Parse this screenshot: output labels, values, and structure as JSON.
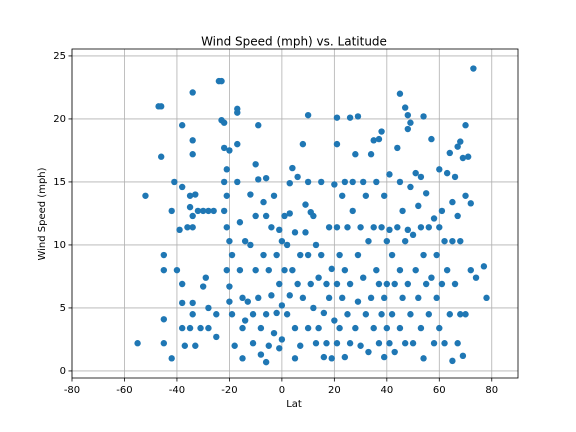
{
  "chart_data": {
    "type": "scatter",
    "title": "Wind Speed (mph) vs. Latitude",
    "x_label": "Lat",
    "y_label": "Wind Speed (mph)",
    "color": "#1f77b4",
    "grid": true,
    "xlim": [
      -80,
      90
    ],
    "xticks": [
      -80,
      -60,
      -40,
      -20,
      0,
      20,
      40,
      60,
      80
    ],
    "ylim": [
      -0.56,
      25.55
    ],
    "yticks": [
      0,
      5,
      10,
      15,
      20,
      25
    ],
    "x": [
      -55,
      -52,
      -47,
      -46,
      -46,
      -45,
      -45,
      -45,
      -45,
      -42,
      -42,
      -41,
      -40,
      -39,
      -38,
      -38,
      -38,
      -38,
      -38,
      -37,
      -36,
      -35,
      -35,
      -35,
      -34,
      -34,
      -34,
      -34,
      -34,
      -34,
      -34,
      -33,
      -33,
      -32,
      -31,
      -30,
      -30,
      -29,
      -28,
      -28,
      -28,
      -26,
      -25,
      -25,
      -24,
      -23,
      -23,
      -22,
      -22,
      -22,
      -22,
      -21,
      -21,
      -21,
      -21,
      -20,
      -20,
      -20,
      -20,
      -19,
      -19,
      -18,
      -17,
      -17,
      -17,
      -17,
      -16,
      -16,
      -15,
      -15,
      -15,
      -14,
      -14,
      -13,
      -12,
      -12,
      -11,
      -11,
      -10,
      -10,
      -10,
      -9,
      -9,
      -9,
      -8,
      -8,
      -7,
      -7,
      -6,
      -6,
      -6,
      -6,
      -5,
      -5,
      -4,
      -4,
      -3,
      -3,
      -2,
      -2,
      -1,
      -1,
      -1,
      0,
      0,
      0,
      1,
      1,
      2,
      2,
      3,
      3,
      3,
      4,
      4,
      5,
      5,
      5,
      6,
      6,
      7,
      7,
      8,
      8,
      9,
      9,
      10,
      10,
      10,
      10,
      11,
      11,
      12,
      12,
      13,
      13,
      14,
      14,
      15,
      15,
      16,
      16,
      17,
      17,
      18,
      18,
      19,
      19,
      20,
      20,
      21,
      21,
      21,
      21,
      21,
      22,
      22,
      23,
      23,
      24,
      24,
      24,
      25,
      25,
      26,
      26,
      26,
      27,
      27,
      28,
      28,
      29,
      29,
      29,
      30,
      30,
      31,
      31,
      32,
      32,
      33,
      33,
      34,
      34,
      35,
      35,
      35,
      36,
      36,
      37,
      37,
      37,
      38,
      38,
      38,
      39,
      39,
      39,
      40,
      40,
      40,
      41,
      41,
      41,
      42,
      42,
      43,
      43,
      44,
      44,
      45,
      45,
      45,
      45,
      46,
      46,
      47,
      47,
      47,
      48,
      48,
      48,
      48,
      49,
      49,
      49,
      50,
      50,
      51,
      51,
      52,
      52,
      53,
      53,
      53,
      54,
      54,
      54,
      55,
      55,
      56,
      56,
      57,
      57,
      58,
      58,
      59,
      59,
      60,
      60,
      60,
      61,
      61,
      62,
      62,
      63,
      63,
      64,
      64,
      65,
      65,
      65,
      66,
      66,
      67,
      67,
      67,
      68,
      68,
      68,
      69,
      69,
      70,
      70,
      70,
      71,
      72,
      72,
      73,
      74,
      77,
      78
    ],
    "values": [
      2.2,
      13.9,
      21,
      21,
      17,
      9.2,
      8,
      4.1,
      2.2,
      12.7,
      1,
      15,
      8,
      11.2,
      19.5,
      14.6,
      6.9,
      5.4,
      3.4,
      2,
      11.4,
      13.9,
      13,
      3.4,
      22.1,
      18.3,
      17.2,
      12.3,
      11.4,
      5.4,
      4.5,
      2,
      14,
      12.7,
      3.4,
      12.7,
      6.7,
      7.4,
      12.7,
      5,
      3.4,
      12.7,
      4.5,
      2.7,
      23,
      23,
      19.9,
      19.7,
      17.7,
      15,
      12.7,
      16,
      13.9,
      11.4,
      8,
      17.5,
      10.3,
      6.7,
      5.5,
      9.2,
      4.5,
      2,
      20.8,
      20.5,
      18,
      15,
      11.8,
      8,
      5.8,
      3.4,
      1,
      10.3,
      4,
      5.5,
      14,
      10,
      4.5,
      2.2,
      16.4,
      12.3,
      8,
      19.5,
      15.2,
      5.8,
      3.4,
      1.3,
      13.4,
      9.2,
      15.3,
      12.3,
      4.5,
      0.7,
      8,
      2,
      11.4,
      6,
      13.9,
      3,
      9.2,
      4.6,
      11.2,
      6.9,
      1.8,
      10.3,
      5.2,
      2.5,
      12.3,
      8,
      10,
      4.5,
      14.9,
      12.5,
      6,
      16.1,
      8,
      11,
      3.4,
      1,
      15.4,
      6.9,
      9.2,
      2,
      18,
      5.8,
      13.2,
      11,
      20.3,
      15,
      9.2,
      3.4,
      12.6,
      6.9,
      12.3,
      5,
      10,
      2.2,
      7.4,
      3.4,
      15,
      9.2,
      4.6,
      1.1,
      6.9,
      2.2,
      11.4,
      5.8,
      1,
      8.1,
      14.8,
      4,
      20.1,
      18,
      11.4,
      6.9,
      2.2,
      9.2,
      3.4,
      13.9,
      5.8,
      15,
      8,
      1.1,
      11.4,
      4.5,
      20.1,
      6.9,
      2.2,
      15,
      12.7,
      17.2,
      3.4,
      20.2,
      9.2,
      5.5,
      11.4,
      2,
      15,
      7.4,
      4.5,
      13.9,
      10.3,
      1.5,
      17.2,
      5.8,
      18.3,
      11.4,
      3.4,
      15,
      8,
      18.4,
      6.9,
      2.2,
      19,
      11.4,
      4.5,
      13.9,
      5.8,
      1.1,
      10.3,
      6.9,
      3.4,
      15.6,
      11.2,
      2.2,
      9.2,
      4.5,
      6.9,
      1.5,
      17.7,
      11.4,
      22,
      15,
      8,
      3.4,
      12.7,
      5.8,
      20.9,
      10.3,
      2.2,
      20.3,
      19.2,
      11.2,
      6.9,
      19.7,
      14.6,
      4.5,
      10.8,
      2.2,
      15.7,
      8,
      13.1,
      5.8,
      15.4,
      11.4,
      3.4,
      20.2,
      9.2,
      1,
      14.1,
      6.9,
      11.4,
      4.5,
      18.4,
      7.4,
      12.1,
      2.2,
      9.2,
      5.8,
      16,
      11.4,
      3.4,
      12.7,
      6.9,
      10.3,
      2.2,
      15.7,
      8,
      17.3,
      4.5,
      13.4,
      10.3,
      0.8,
      15.4,
      6.9,
      17.8,
      12.3,
      2.2,
      18.2,
      10.3,
      4.5,
      16.9,
      1.2,
      19.5,
      13.9,
      4.5,
      17,
      13.3,
      8,
      24,
      7.4,
      8.3,
      5.8
    ]
  }
}
